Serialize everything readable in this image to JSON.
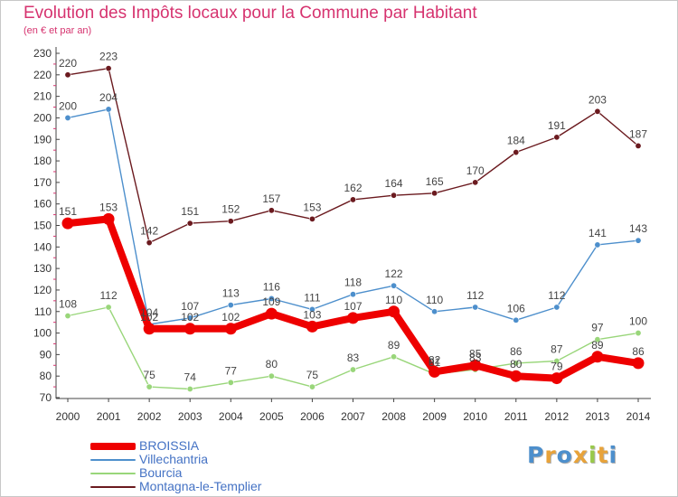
{
  "title": "Evolution des Impôts locaux pour la Commune par Habitant",
  "subtitle": "(en € et par an)",
  "colors": {
    "title": "#d6336f",
    "axis": "#444444",
    "tick_red": "#d6336f",
    "legend_text": "#4472c4"
  },
  "chart_data": {
    "type": "line",
    "x": [
      "2000",
      "2001",
      "2002",
      "2003",
      "2004",
      "2005",
      "2006",
      "2007",
      "2008",
      "2009",
      "2010",
      "2011",
      "2012",
      "2013",
      "2014"
    ],
    "ylim": [
      70,
      230
    ],
    "yticks": [
      70,
      80,
      90,
      100,
      110,
      120,
      130,
      140,
      150,
      160,
      170,
      180,
      190,
      200,
      210,
      220,
      230
    ],
    "grid": false,
    "legend_position": "bottom-left",
    "series": [
      {
        "name": "Montagna-le-Templier",
        "color": "#6b1a1f",
        "values": [
          220,
          223,
          142,
          151,
          152,
          157,
          153,
          162,
          164,
          165,
          170,
          184,
          191,
          203,
          187
        ]
      },
      {
        "name": "Villechantria",
        "color": "#4d8fcc",
        "values": [
          200,
          204,
          104,
          107,
          113,
          116,
          111,
          118,
          122,
          110,
          112,
          106,
          112,
          141,
          143
        ]
      },
      {
        "name": "Bourcia",
        "color": "#99d67a",
        "values": [
          108,
          112,
          75,
          74,
          77,
          80,
          75,
          83,
          89,
          81,
          83,
          86,
          87,
          97,
          100
        ]
      },
      {
        "name": "BROISSIA",
        "color": "#ee0000",
        "values": [
          151,
          153,
          102,
          102,
          102,
          109,
          103,
          107,
          110,
          82,
          85,
          80,
          79,
          89,
          86
        ]
      }
    ]
  },
  "legend": {
    "items": [
      {
        "label": "BROISSIA",
        "color": "#ee0000"
      },
      {
        "label": "Villechantria",
        "color": "#4d8fcc"
      },
      {
        "label": "Bourcia",
        "color": "#99d67a"
      },
      {
        "label": "Montagna-le-Templier",
        "color": "#6b1a1f"
      }
    ]
  },
  "logo": {
    "text": "Proxiti",
    "letter_colors": [
      "#4d8fcc",
      "#e8a33a",
      "#4d8fcc",
      "#e8a33a",
      "#99c94a",
      "#e8a33a",
      "#4d8fcc"
    ]
  }
}
